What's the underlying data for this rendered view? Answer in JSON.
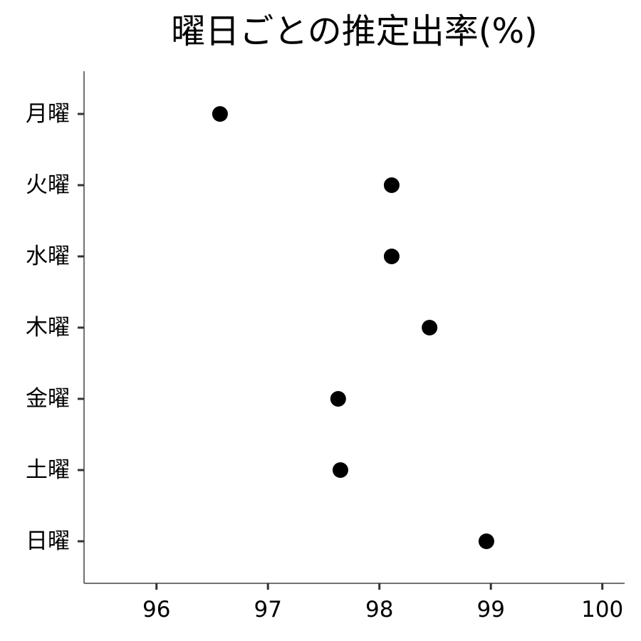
{
  "chart_data": {
    "type": "scatter",
    "title": "曜日ごとの推定出率(%)",
    "xlabel": "",
    "ylabel": "",
    "categories": [
      "月曜",
      "火曜",
      "水曜",
      "木曜",
      "金曜",
      "土曜",
      "日曜"
    ],
    "values": [
      96.57,
      98.11,
      98.11,
      98.45,
      97.63,
      97.65,
      98.96
    ],
    "xlim": [
      95.35,
      100.2
    ],
    "xticks": [
      96,
      97,
      98,
      99,
      100
    ],
    "grid": false,
    "point_color": "#000000"
  }
}
